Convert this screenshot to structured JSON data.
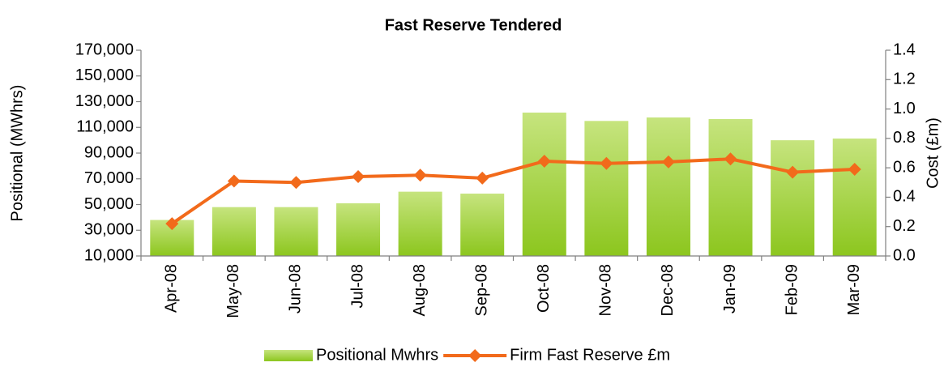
{
  "chart_data": {
    "type": "bar_line",
    "title": "Fast Reserve Tendered",
    "y_label": "Positional (MWhrs)",
    "y2_label": "Cost (£m)",
    "categories": [
      "Apr-08",
      "May-08",
      "Jun-08",
      "Jul-08",
      "Aug-08",
      "Sep-08",
      "Oct-08",
      "Nov-08",
      "Dec-08",
      "Jan-09",
      "Feb-09",
      "Mar-09"
    ],
    "series": [
      {
        "name": "Positional Mwhrs",
        "type": "bar",
        "color": "#9ccc2c",
        "values": [
          38000,
          48000,
          48000,
          51000,
          60000,
          58500,
          121500,
          115000,
          117700,
          116500,
          100000,
          101300
        ]
      },
      {
        "name": "Firm Fast Reserve £m",
        "type": "line",
        "axis": "y2",
        "color": "#f26a1b",
        "values": [
          0.22,
          0.51,
          0.5,
          0.54,
          0.55,
          0.53,
          0.645,
          0.63,
          0.64,
          0.66,
          0.57,
          0.59
        ]
      }
    ],
    "ylim": [
      10000,
      170000
    ],
    "yticks": [
      {
        "value": 10000,
        "label": "10,000"
      },
      {
        "value": 30000,
        "label": "30,000"
      },
      {
        "value": 50000,
        "label": "50,000"
      },
      {
        "value": 70000,
        "label": "70,000"
      },
      {
        "value": 90000,
        "label": "90,000"
      },
      {
        "value": 110000,
        "label": "110,000"
      },
      {
        "value": 130000,
        "label": "130,000"
      },
      {
        "value": 150000,
        "label": "150,000"
      },
      {
        "value": 170000,
        "label": "170,000"
      }
    ],
    "y2lim": [
      0,
      1.4
    ],
    "y2ticks": [
      {
        "value": 0,
        "label": "0.0"
      },
      0.2,
      0.4,
      0.6,
      0.8,
      {
        "value": 1,
        "label": "1.0"
      },
      1.2,
      1.4
    ],
    "legend": "bottom"
  }
}
